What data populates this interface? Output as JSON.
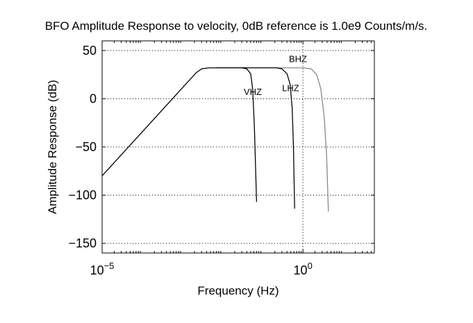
{
  "chart_data": {
    "type": "line",
    "title": "BFO Amplitude Response to velocity, 0dB reference is 1.0e9 Counts/m/s.",
    "xlabel": "Frequency (Hz)",
    "ylabel": "Amplitude Response (dB)",
    "x_scale": "log",
    "xlim": [
      1e-05,
      60
    ],
    "ylim": [
      -160,
      60
    ],
    "grid": true,
    "x_ticks": [
      {
        "value": 1e-05,
        "base": "10",
        "exp": "−5"
      },
      {
        "value": 1,
        "base": "10",
        "exp": "0"
      }
    ],
    "y_ticks": [
      {
        "value": 50,
        "label": "50"
      },
      {
        "value": 0,
        "label": "0"
      },
      {
        "value": -50,
        "label": "−50"
      },
      {
        "value": -100,
        "label": "−100"
      },
      {
        "value": -150,
        "label": "−150"
      }
    ],
    "series": [
      {
        "name": "BHZ",
        "color": "#888888",
        "points": [
          [
            0.0071,
            32
          ],
          [
            1.0,
            32
          ],
          [
            1.6,
            31
          ],
          [
            2.2,
            25
          ],
          [
            2.8,
            10
          ],
          [
            3.4,
            -20
          ],
          [
            3.9,
            -60
          ],
          [
            4.3,
            -117
          ]
        ]
      },
      {
        "name": "LHZ",
        "color": "#000000",
        "points": [
          [
            0.0071,
            32
          ],
          [
            0.22,
            32
          ],
          [
            0.3,
            31
          ],
          [
            0.4,
            26
          ],
          [
            0.48,
            15
          ],
          [
            0.54,
            -10
          ],
          [
            0.58,
            -50
          ],
          [
            0.62,
            -114
          ]
        ]
      },
      {
        "name": "VHZ",
        "color": "#000000",
        "points": [
          [
            1e-05,
            -80
          ],
          [
            0.0022,
            27
          ],
          [
            0.003,
            31
          ],
          [
            0.0045,
            32
          ],
          [
            0.03,
            32
          ],
          [
            0.04,
            31
          ],
          [
            0.05,
            26
          ],
          [
            0.056,
            10
          ],
          [
            0.062,
            -30
          ],
          [
            0.066,
            -70
          ],
          [
            0.07,
            -107
          ]
        ]
      }
    ]
  }
}
